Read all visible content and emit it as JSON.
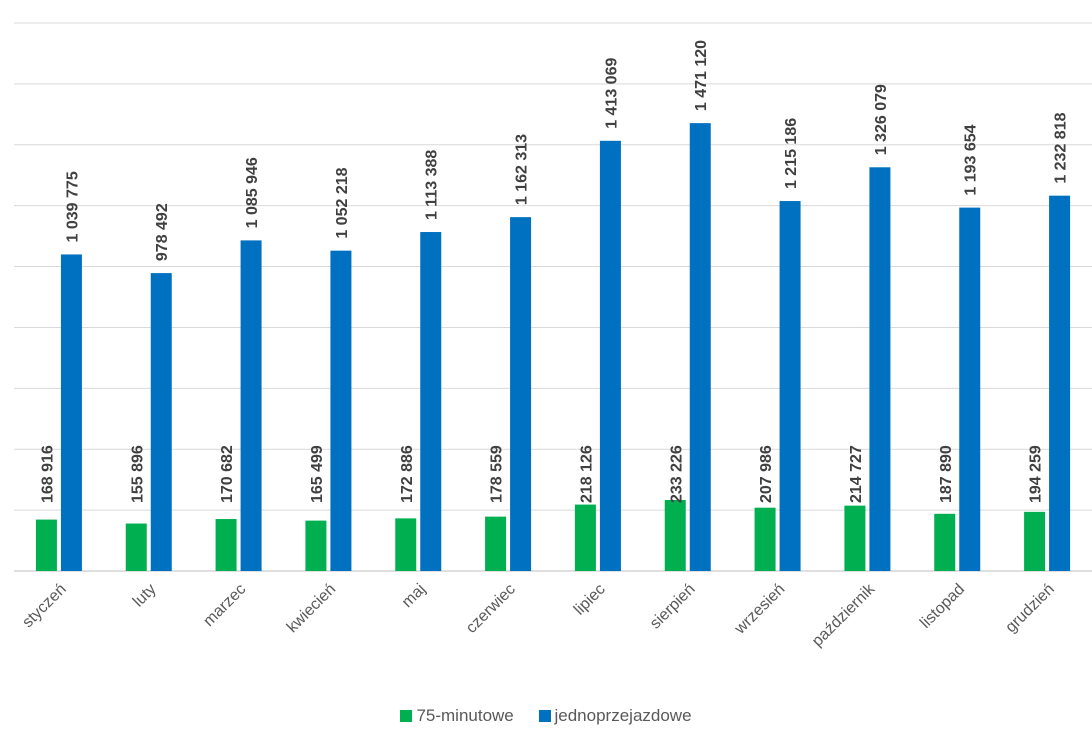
{
  "chart_data": {
    "type": "bar",
    "title": "",
    "xlabel": "",
    "ylabel": "",
    "ylim": [
      0,
      1800000
    ],
    "grid": true,
    "legend_position": "bottom",
    "categories": [
      "styczeń",
      "luty",
      "marzec",
      "kwiecień",
      "maj",
      "czerwiec",
      "lipiec",
      "sierpień",
      "wrzesień",
      "październik",
      "listopad",
      "grudzień"
    ],
    "series": [
      {
        "name": "75-minutowe",
        "color": "#00b050",
        "values": [
          168916,
          155896,
          170682,
          165499,
          172886,
          178559,
          218126,
          233226,
          207986,
          214727,
          187890,
          194259
        ],
        "labels": [
          "168 916",
          "155 896",
          "170 682",
          "165 499",
          "172 886",
          "178 559",
          "218 126",
          "233 226",
          "207 986",
          "214 727",
          "187 890",
          "194 259"
        ]
      },
      {
        "name": "jednoprzejazdowe",
        "color": "#0070c0",
        "values": [
          1039775,
          978492,
          1085946,
          1052218,
          1113388,
          1162313,
          1413069,
          1471120,
          1215186,
          1326079,
          1193654,
          1232818
        ],
        "labels": [
          "1 039 775",
          "978 492",
          "1 085 946",
          "1 052 218",
          "1 113 388",
          "1 162 313",
          "1 413 069",
          "1 471 120",
          "1 215 186",
          "1 326 079",
          "1 193 654",
          "1 232 818"
        ]
      }
    ]
  }
}
